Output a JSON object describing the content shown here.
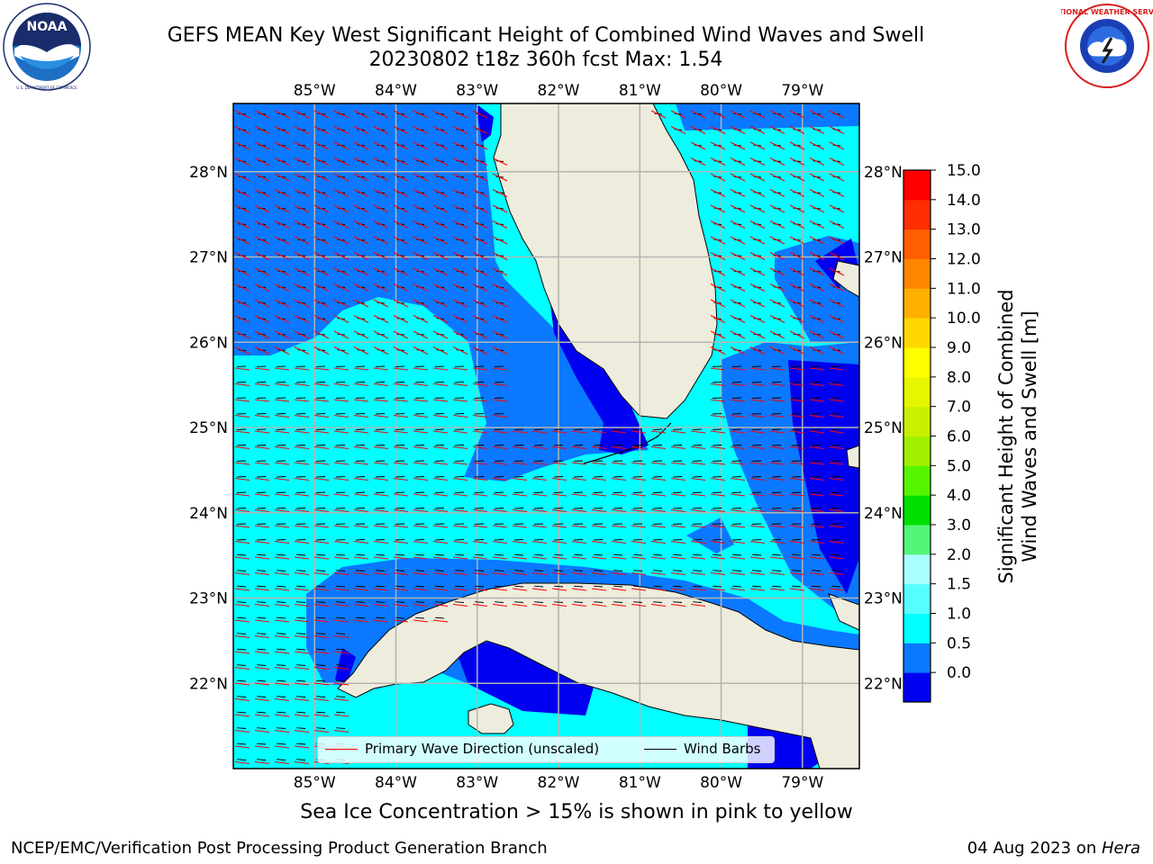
{
  "title": {
    "line1": "GEFS MEAN Key West Significant Height of Combined Wind Waves and Swell",
    "line2": "20230802 t18z 360h fcst   Max: 1.54"
  },
  "logos": {
    "left": {
      "name": "NOAA",
      "ring_text": "NATIONAL OCEANIC AND ATMOSPHERIC ADMINISTRATION",
      "bottom_text": "U.S. DEPARTMENT OF COMMERCE"
    },
    "right": {
      "name": "NATIONAL WEATHER SERVICE"
    }
  },
  "map": {
    "x_ticks": [
      "85°W",
      "84°W",
      "83°W",
      "82°W",
      "81°W",
      "80°W",
      "79°W"
    ],
    "y_ticks": [
      "28°N",
      "27°N",
      "26°N",
      "25°N",
      "24°N",
      "23°N",
      "22°N"
    ],
    "lon_range": [
      -86.0,
      -78.3
    ],
    "lat_range": [
      21.0,
      28.8
    ],
    "land_color": "#eeecdc",
    "grid_color": "#b4b4b4"
  },
  "colorbar": {
    "label_line1": "Significant Height of Combined",
    "label_line2": "Wind Waves and Swell [m]",
    "ticks": [
      "15.0",
      "14.0",
      "13.0",
      "12.0",
      "11.0",
      "10.0",
      "9.0",
      "8.0",
      "7.0",
      "6.0",
      "5.0",
      "4.0",
      "3.0",
      "2.0",
      "1.5",
      "1.0",
      "0.5",
      "0.0"
    ],
    "colors": [
      "#0000f0",
      "#0a78ff",
      "#00ffff",
      "#55ffff",
      "#aaffff",
      "#55f57a",
      "#00e000",
      "#55f500",
      "#a0f000",
      "#c8f000",
      "#e6f500",
      "#ffff00",
      "#ffd700",
      "#ffaf00",
      "#ff8700",
      "#ff5f00",
      "#ff2d00",
      "#ff0000"
    ]
  },
  "legend": {
    "wave": "Primary Wave Direction (unscaled)",
    "wind": "Wind Barbs",
    "wave_color": "#ff0000",
    "wind_color": "#000000"
  },
  "footer": {
    "caption": "Sea Ice Concentration > 15% is shown in pink to yellow",
    "credit": "NCEP/EMC/Verification Post Processing Product Generation Branch",
    "date_prefix": "04 Aug 2023 on ",
    "date_machine": "Hera"
  }
}
